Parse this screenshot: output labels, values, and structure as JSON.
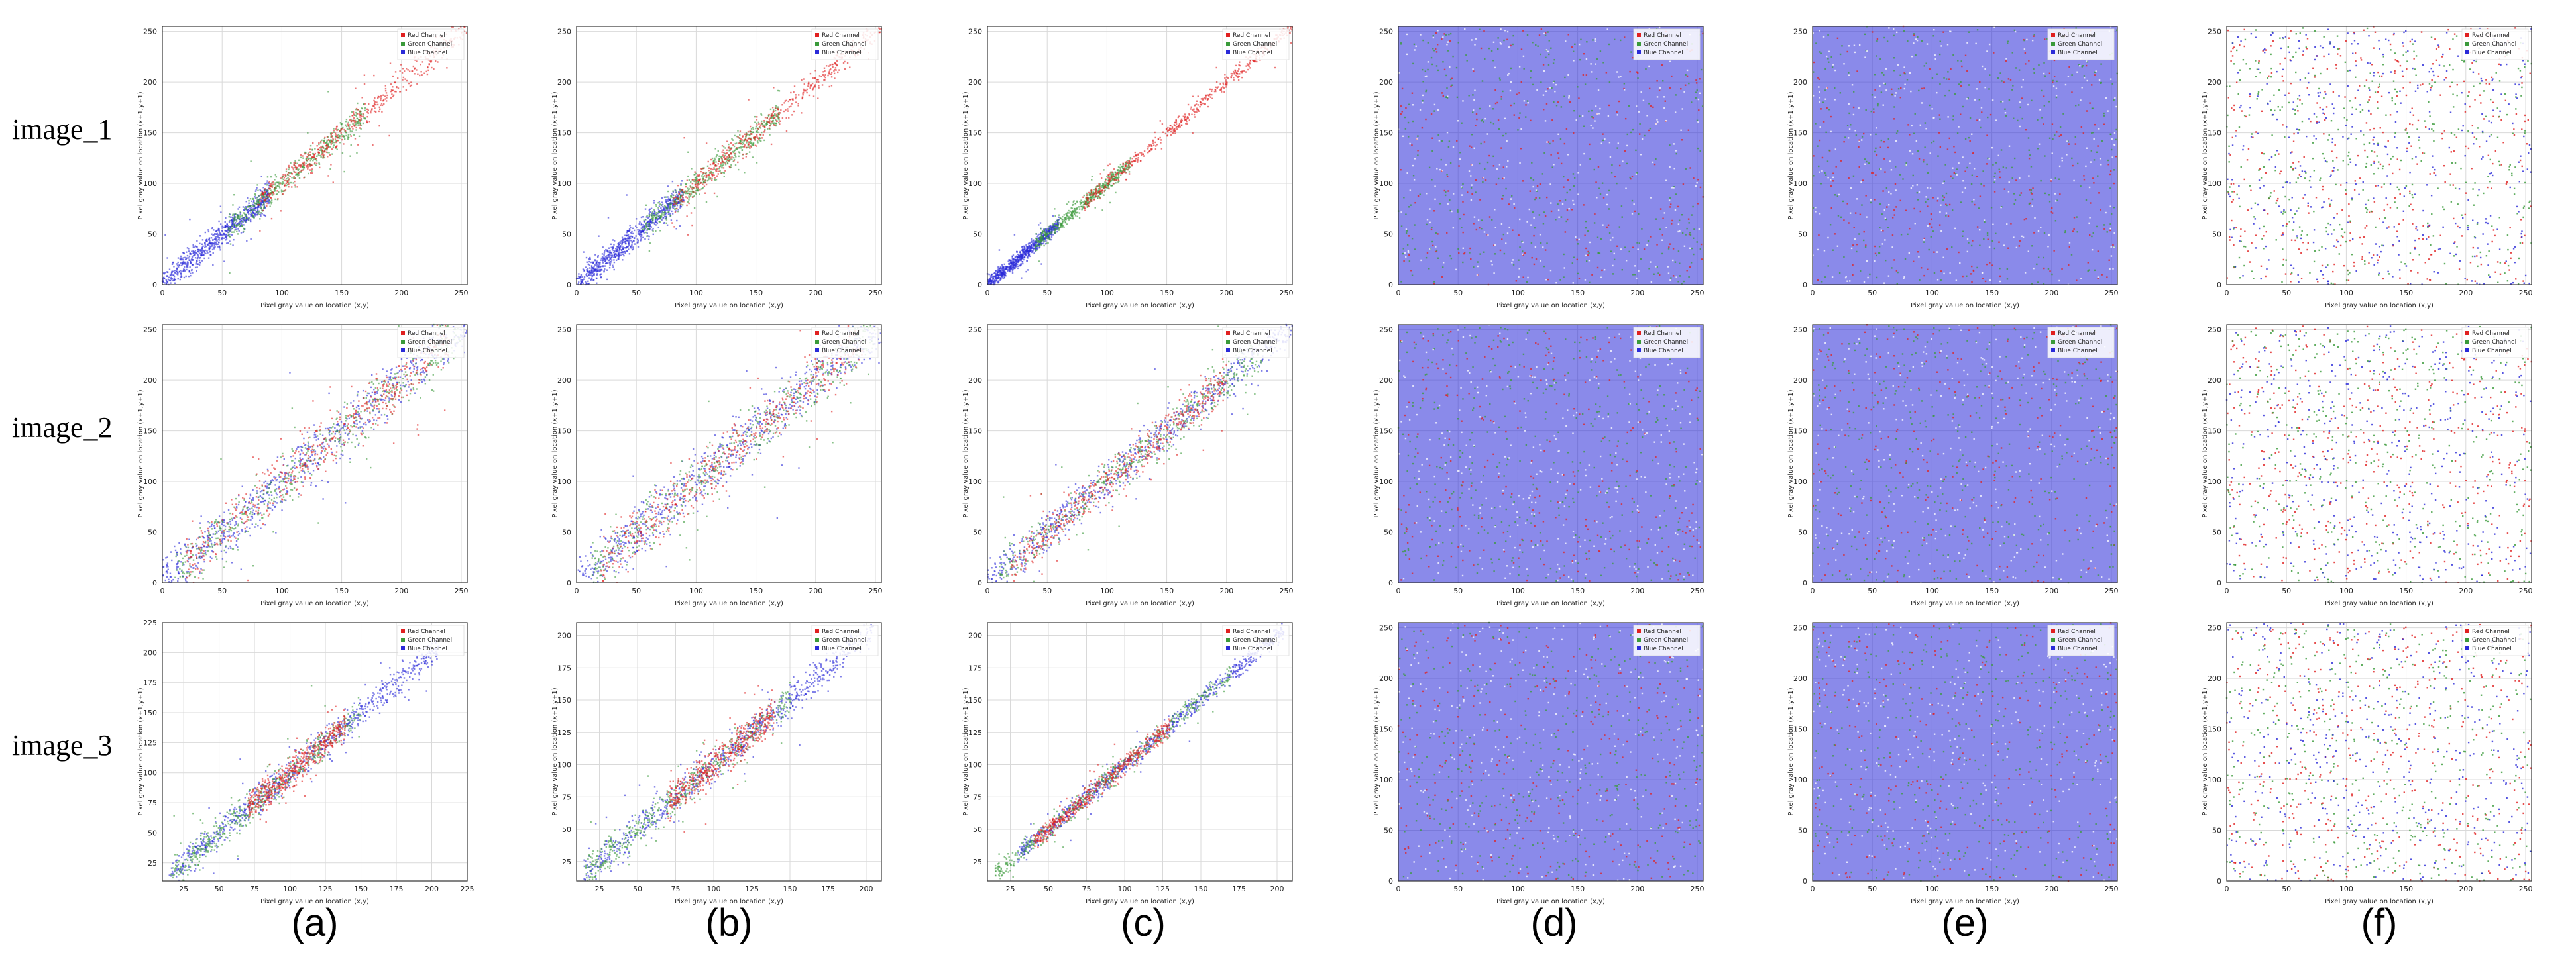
{
  "figure": {
    "row_labels": [
      "image_1",
      "image_2",
      "image_3"
    ],
    "column_labels": [
      "(a)",
      "(b)",
      "(c)",
      "(d)",
      "(e)",
      "(f)"
    ],
    "legend": [
      "Red Channel",
      "Green Channel",
      "Blue Channel"
    ],
    "xlabel": "Pixel gray value on location (x,y)",
    "ylabel": "Pixel gray value on location (x+1,y+1)",
    "colors": {
      "red": "#e02020",
      "green": "#3a9a3a",
      "blue": "#2a2ad8",
      "grid": "#d9d9d9",
      "axis": "#333333"
    }
  },
  "chart_data": [
    {
      "panel": "image_1 (a)",
      "type": "scatter",
      "xlim": [
        0,
        255
      ],
      "ylim": [
        0,
        255
      ],
      "xticks": [
        0,
        50,
        100,
        150,
        200,
        250
      ],
      "yticks": [
        0,
        50,
        100,
        150,
        200,
        250
      ],
      "pattern": "diagonal",
      "spread": 12,
      "series": [
        {
          "name": "Red Channel",
          "range": [
            80,
            255
          ]
        },
        {
          "name": "Green Channel",
          "range": [
            55,
            170
          ]
        },
        {
          "name": "Blue Channel",
          "range": [
            0,
            90
          ]
        }
      ]
    },
    {
      "panel": "image_1 (b)",
      "type": "scatter",
      "xlim": [
        0,
        255
      ],
      "ylim": [
        0,
        255
      ],
      "xticks": [
        0,
        50,
        100,
        150,
        200,
        250
      ],
      "yticks": [
        0,
        50,
        100,
        150,
        200,
        250
      ],
      "pattern": "diagonal",
      "spread": 12,
      "series": [
        {
          "name": "Red Channel",
          "range": [
            80,
            255
          ]
        },
        {
          "name": "Green Channel",
          "range": [
            55,
            170
          ]
        },
        {
          "name": "Blue Channel",
          "range": [
            0,
            90
          ]
        }
      ]
    },
    {
      "panel": "image_1 (c)",
      "type": "scatter",
      "xlim": [
        0,
        255
      ],
      "ylim": [
        0,
        255
      ],
      "xticks": [
        0,
        50,
        100,
        150,
        200,
        250
      ],
      "yticks": [
        0,
        50,
        100,
        150,
        200,
        250
      ],
      "pattern": "diagonal",
      "spread": 7,
      "series": [
        {
          "name": "Red Channel",
          "range": [
            80,
            255
          ]
        },
        {
          "name": "Green Channel",
          "range": [
            40,
            120
          ]
        },
        {
          "name": "Blue Channel",
          "range": [
            0,
            60
          ]
        }
      ]
    },
    {
      "panel": "image_1 (d)",
      "type": "scatter",
      "xlim": [
        0,
        255
      ],
      "ylim": [
        0,
        255
      ],
      "xticks": [
        0,
        50,
        100,
        150,
        200,
        250
      ],
      "yticks": [
        0,
        50,
        100,
        150,
        200,
        250
      ],
      "pattern": "uniform-dense",
      "series": [
        {
          "name": "Red Channel"
        },
        {
          "name": "Green Channel"
        },
        {
          "name": "Blue Channel"
        }
      ]
    },
    {
      "panel": "image_1 (e)",
      "type": "scatter",
      "xlim": [
        0,
        255
      ],
      "ylim": [
        0,
        255
      ],
      "xticks": [
        0,
        50,
        100,
        150,
        200,
        250
      ],
      "yticks": [
        0,
        50,
        100,
        150,
        200,
        250
      ],
      "pattern": "uniform-dense",
      "series": [
        {
          "name": "Red Channel"
        },
        {
          "name": "Green Channel"
        },
        {
          "name": "Blue Channel"
        }
      ]
    },
    {
      "panel": "image_1 (f)",
      "type": "scatter",
      "xlim": [
        0,
        255
      ],
      "ylim": [
        0,
        255
      ],
      "xticks": [
        0,
        50,
        100,
        150,
        200,
        250
      ],
      "yticks": [
        0,
        50,
        100,
        150,
        200,
        250
      ],
      "pattern": "uniform-sparse",
      "series": [
        {
          "name": "Red Channel"
        },
        {
          "name": "Green Channel"
        },
        {
          "name": "Blue Channel"
        }
      ]
    },
    {
      "panel": "image_2 (a)",
      "type": "scatter",
      "xlim": [
        0,
        255
      ],
      "ylim": [
        0,
        255
      ],
      "xticks": [
        0,
        50,
        100,
        150,
        200,
        250
      ],
      "yticks": [
        0,
        50,
        100,
        150,
        200,
        250
      ],
      "pattern": "diagonal",
      "spread": 24,
      "series": [
        {
          "name": "Red Channel",
          "range": [
            20,
            240
          ]
        },
        {
          "name": "Green Channel",
          "range": [
            10,
            250
          ]
        },
        {
          "name": "Blue Channel",
          "range": [
            0,
            255
          ]
        }
      ]
    },
    {
      "panel": "image_2 (b)",
      "type": "scatter",
      "xlim": [
        0,
        255
      ],
      "ylim": [
        0,
        255
      ],
      "xticks": [
        0,
        50,
        100,
        150,
        200,
        250
      ],
      "yticks": [
        0,
        50,
        100,
        150,
        200,
        250
      ],
      "pattern": "diagonal",
      "spread": 24,
      "series": [
        {
          "name": "Red Channel",
          "range": [
            20,
            240
          ]
        },
        {
          "name": "Green Channel",
          "range": [
            10,
            250
          ]
        },
        {
          "name": "Blue Channel",
          "range": [
            0,
            255
          ]
        }
      ]
    },
    {
      "panel": "image_2 (c)",
      "type": "scatter",
      "xlim": [
        0,
        255
      ],
      "ylim": [
        0,
        255
      ],
      "xticks": [
        0,
        50,
        100,
        150,
        200,
        250
      ],
      "yticks": [
        0,
        50,
        100,
        150,
        200,
        250
      ],
      "pattern": "diagonal",
      "spread": 18,
      "series": [
        {
          "name": "Red Channel",
          "range": [
            20,
            200
          ]
        },
        {
          "name": "Green Channel",
          "range": [
            10,
            230
          ]
        },
        {
          "name": "Blue Channel",
          "range": [
            0,
            255
          ]
        }
      ]
    },
    {
      "panel": "image_2 (d)",
      "type": "scatter",
      "xlim": [
        0,
        255
      ],
      "ylim": [
        0,
        255
      ],
      "xticks": [
        0,
        50,
        100,
        150,
        200,
        250
      ],
      "yticks": [
        0,
        50,
        100,
        150,
        200,
        250
      ],
      "pattern": "uniform-dense",
      "series": [
        {
          "name": "Red Channel"
        },
        {
          "name": "Green Channel"
        },
        {
          "name": "Blue Channel"
        }
      ]
    },
    {
      "panel": "image_2 (e)",
      "type": "scatter",
      "xlim": [
        0,
        255
      ],
      "ylim": [
        0,
        255
      ],
      "xticks": [
        0,
        50,
        100,
        150,
        200,
        250
      ],
      "yticks": [
        0,
        50,
        100,
        150,
        200,
        250
      ],
      "pattern": "uniform-dense",
      "series": [
        {
          "name": "Red Channel"
        },
        {
          "name": "Green Channel"
        },
        {
          "name": "Blue Channel"
        }
      ]
    },
    {
      "panel": "image_2 (f)",
      "type": "scatter",
      "xlim": [
        0,
        255
      ],
      "ylim": [
        0,
        255
      ],
      "xticks": [
        0,
        50,
        100,
        150,
        200,
        250
      ],
      "yticks": [
        0,
        50,
        100,
        150,
        200,
        250
      ],
      "pattern": "uniform-sparse",
      "series": [
        {
          "name": "Red Channel"
        },
        {
          "name": "Green Channel"
        },
        {
          "name": "Blue Channel"
        }
      ]
    },
    {
      "panel": "image_3 (a)",
      "type": "scatter",
      "xlim": [
        10,
        225
      ],
      "ylim": [
        10,
        225
      ],
      "xticks": [
        25,
        50,
        75,
        100,
        125,
        150,
        175,
        200,
        225
      ],
      "yticks": [
        25,
        50,
        75,
        100,
        125,
        150,
        175,
        200,
        225
      ],
      "pattern": "diagonal",
      "spread": 12,
      "series": [
        {
          "name": "Red Channel",
          "range": [
            70,
            140
          ]
        },
        {
          "name": "Green Channel",
          "range": [
            15,
            150
          ]
        },
        {
          "name": "Blue Channel",
          "range": [
            15,
            205
          ]
        }
      ]
    },
    {
      "panel": "image_3 (b)",
      "type": "scatter",
      "xlim": [
        10,
        210
      ],
      "ylim": [
        10,
        210
      ],
      "xticks": [
        25,
        50,
        75,
        100,
        125,
        150,
        175,
        200
      ],
      "yticks": [
        25,
        50,
        75,
        100,
        125,
        150,
        175,
        200
      ],
      "pattern": "diagonal",
      "spread": 12,
      "series": [
        {
          "name": "Red Channel",
          "range": [
            70,
            140
          ]
        },
        {
          "name": "Green Channel",
          "range": [
            15,
            150
          ]
        },
        {
          "name": "Blue Channel",
          "range": [
            15,
            205
          ]
        }
      ]
    },
    {
      "panel": "image_3 (c)",
      "type": "scatter",
      "xlim": [
        10,
        210
      ],
      "ylim": [
        10,
        210
      ],
      "xticks": [
        25,
        50,
        75,
        100,
        125,
        150,
        175,
        200
      ],
      "yticks": [
        25,
        50,
        75,
        100,
        125,
        150,
        175,
        200
      ],
      "pattern": "diagonal",
      "spread": 7,
      "series": [
        {
          "name": "Red Channel",
          "range": [
            40,
            130
          ]
        },
        {
          "name": "Green Channel",
          "range": [
            15,
            170
          ]
        },
        {
          "name": "Blue Channel",
          "range": [
            30,
            205
          ]
        }
      ]
    },
    {
      "panel": "image_3 (d)",
      "type": "scatter",
      "xlim": [
        0,
        255
      ],
      "ylim": [
        0,
        255
      ],
      "xticks": [
        0,
        50,
        100,
        150,
        200,
        250
      ],
      "yticks": [
        0,
        50,
        100,
        150,
        200,
        250
      ],
      "pattern": "uniform-dense",
      "series": [
        {
          "name": "Red Channel"
        },
        {
          "name": "Green Channel"
        },
        {
          "name": "Blue Channel"
        }
      ]
    },
    {
      "panel": "image_3 (e)",
      "type": "scatter",
      "xlim": [
        0,
        255
      ],
      "ylim": [
        0,
        255
      ],
      "xticks": [
        0,
        50,
        100,
        150,
        200,
        250
      ],
      "yticks": [
        0,
        50,
        100,
        150,
        200,
        250
      ],
      "pattern": "uniform-dense",
      "series": [
        {
          "name": "Red Channel"
        },
        {
          "name": "Green Channel"
        },
        {
          "name": "Blue Channel"
        }
      ]
    },
    {
      "panel": "image_3 (f)",
      "type": "scatter",
      "xlim": [
        0,
        255
      ],
      "ylim": [
        0,
        255
      ],
      "xticks": [
        0,
        50,
        100,
        150,
        200,
        250
      ],
      "yticks": [
        0,
        50,
        100,
        150,
        200,
        250
      ],
      "pattern": "uniform-sparse",
      "series": [
        {
          "name": "Red Channel"
        },
        {
          "name": "Green Channel"
        },
        {
          "name": "Blue Channel"
        }
      ]
    }
  ]
}
